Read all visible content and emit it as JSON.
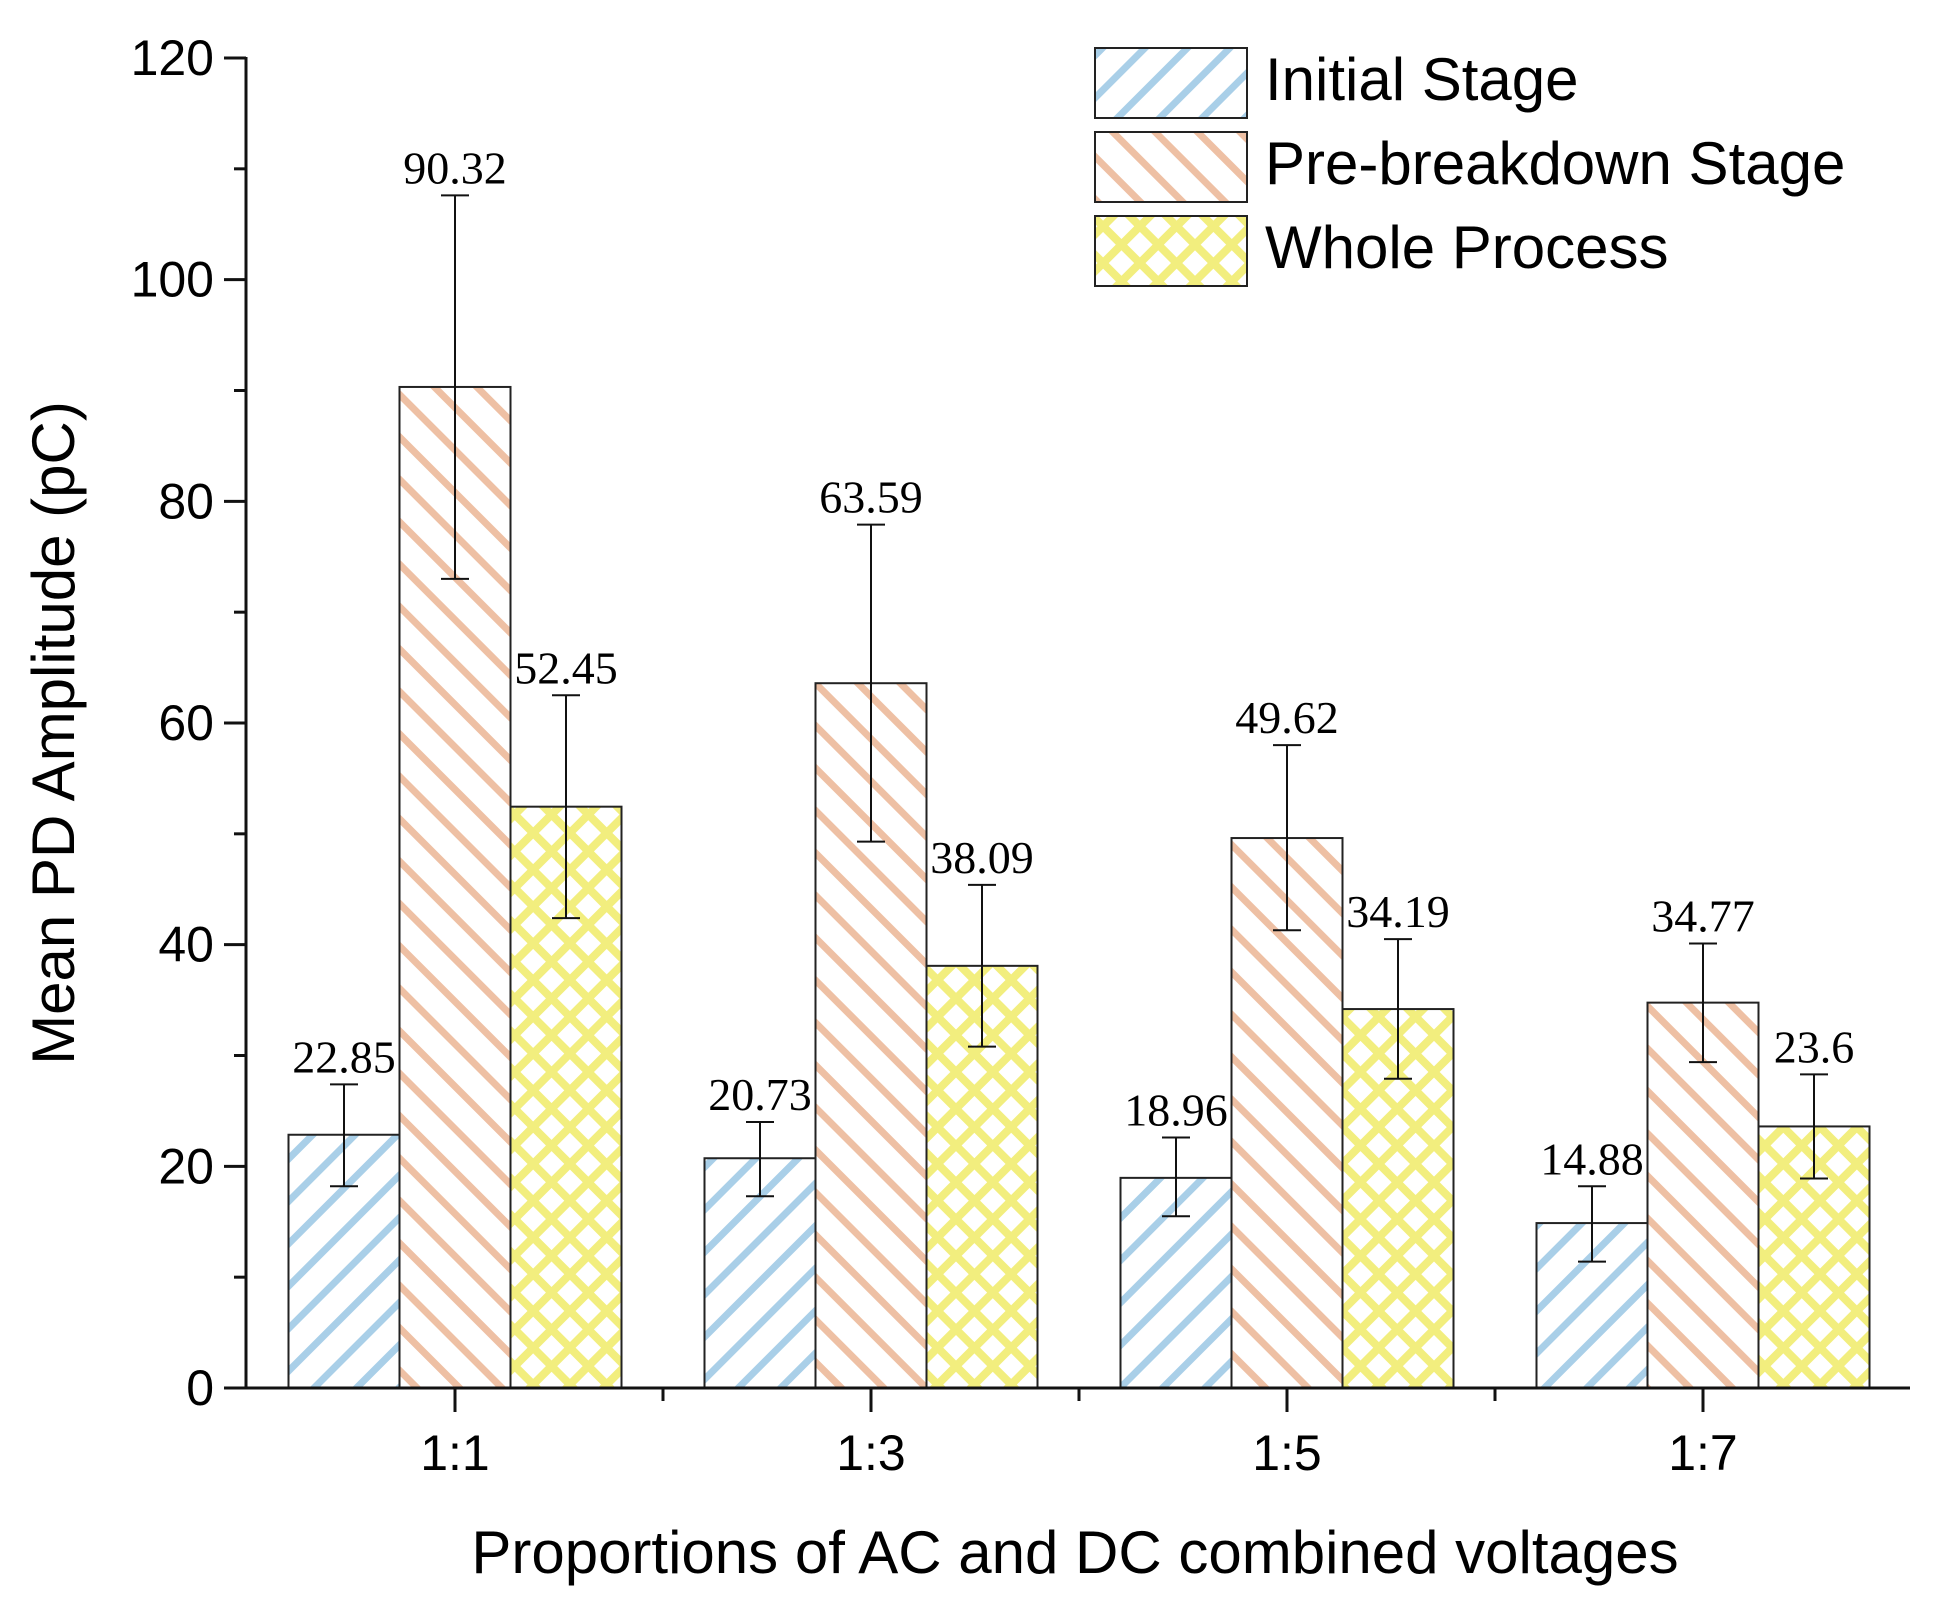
{
  "chart_data": {
    "type": "bar",
    "title": "",
    "xlabel": "Proportions of AC and DC combined voltages",
    "ylabel": "Mean PD Amplitude (pC)",
    "ylim": [
      0,
      120
    ],
    "yticks": [
      0,
      20,
      40,
      60,
      80,
      100,
      120
    ],
    "grid": false,
    "legend_position": "top-right",
    "categories": [
      "1:1",
      "1:3",
      "1:5",
      "1:7"
    ],
    "series": [
      {
        "name": "Initial Stage",
        "pattern": "diag-up",
        "color": "#a9cfe8",
        "values": [
          22.85,
          20.73,
          18.96,
          14.88
        ],
        "labels": [
          "22.85",
          "20.73",
          "18.96",
          "14.88"
        ],
        "error_low": [
          18.2,
          17.3,
          15.5,
          11.4
        ],
        "error_high": [
          27.4,
          24.0,
          22.6,
          18.2
        ]
      },
      {
        "name": "Pre-breakdown Stage",
        "pattern": "diag-down",
        "color": "#eec0a4",
        "values": [
          90.32,
          63.59,
          49.62,
          34.77
        ],
        "labels": [
          "90.32",
          "63.59",
          "49.62",
          "34.77"
        ],
        "error_low": [
          73.0,
          49.3,
          41.3,
          29.4
        ],
        "error_high": [
          107.6,
          77.9,
          58.0,
          40.1
        ]
      },
      {
        "name": "Whole Process",
        "pattern": "crosshatch",
        "color": "#f2ee7e",
        "values": [
          52.45,
          38.09,
          34.19,
          23.6
        ],
        "labels": [
          "52.45",
          "38.09",
          "34.19",
          "23.6"
        ],
        "error_low": [
          42.4,
          30.8,
          27.9,
          18.9
        ],
        "error_high": [
          62.5,
          45.4,
          40.5,
          28.3
        ]
      }
    ]
  }
}
